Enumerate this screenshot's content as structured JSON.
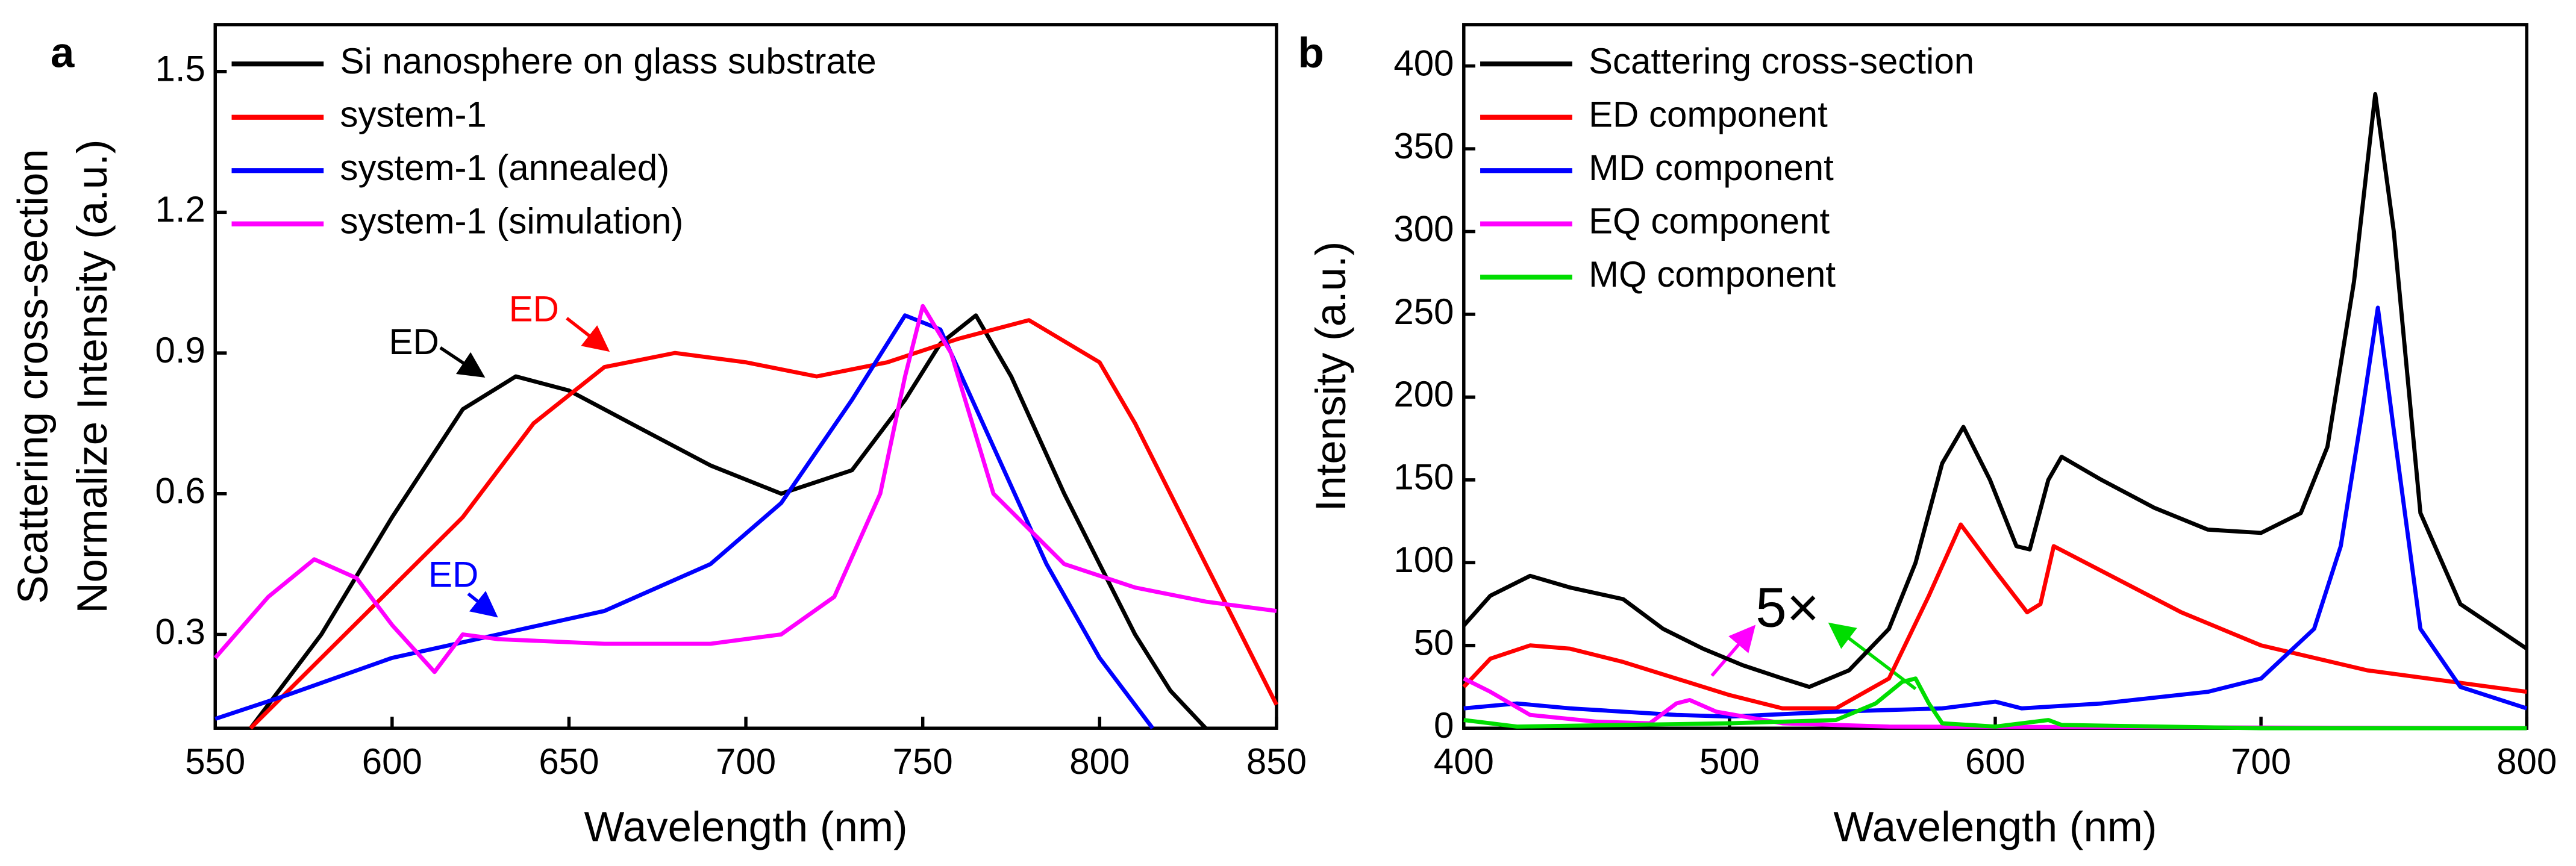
{
  "chart_data": [
    {
      "type": "line",
      "panel": "a",
      "ylabel": [
        "Scattering cross-section",
        "Normalize Intensity (a.u.)"
      ],
      "xlabel": "Wavelength (nm)",
      "xlim": [
        550,
        850
      ],
      "xticks": [
        550,
        600,
        650,
        700,
        750,
        800,
        850
      ],
      "ylim": [
        0.1,
        1.6
      ],
      "yticks": [
        0.3,
        0.6,
        0.9,
        1.2,
        1.5
      ],
      "legend": "upper left",
      "series": [
        {
          "name": "Si nanosphere on glass substrate",
          "color": "#000000",
          "x": [
            560,
            580,
            600,
            620,
            635,
            650,
            670,
            690,
            710,
            730,
            745,
            755,
            765,
            775,
            790,
            800,
            810,
            820,
            830
          ],
          "values": [
            0.1,
            0.3,
            0.55,
            0.78,
            0.85,
            0.82,
            0.74,
            0.66,
            0.6,
            0.65,
            0.8,
            0.92,
            0.98,
            0.85,
            0.6,
            0.45,
            0.3,
            0.18,
            0.1
          ]
        },
        {
          "name": "system-1",
          "color": "#ff0000",
          "x": [
            560,
            580,
            600,
            620,
            640,
            660,
            680,
            700,
            720,
            740,
            760,
            780,
            800,
            810,
            820,
            830,
            840,
            850
          ],
          "values": [
            0.1,
            0.25,
            0.4,
            0.55,
            0.75,
            0.87,
            0.9,
            0.88,
            0.85,
            0.88,
            0.93,
            0.97,
            0.88,
            0.75,
            0.6,
            0.45,
            0.3,
            0.15
          ]
        },
        {
          "name": "system-1 (annealed)",
          "color": "#0000ff",
          "x": [
            550,
            570,
            600,
            630,
            660,
            690,
            710,
            730,
            745,
            755,
            770,
            785,
            800,
            815
          ],
          "values": [
            0.12,
            0.17,
            0.25,
            0.3,
            0.35,
            0.45,
            0.58,
            0.8,
            0.98,
            0.95,
            0.7,
            0.45,
            0.25,
            0.1
          ]
        },
        {
          "name": "system-1 (simulation)",
          "color": "#ff00ff",
          "x": [
            550,
            565,
            578,
            590,
            600,
            612,
            620,
            630,
            660,
            690,
            710,
            725,
            738,
            745,
            750,
            758,
            770,
            790,
            810,
            830,
            850
          ],
          "values": [
            0.25,
            0.38,
            0.46,
            0.42,
            0.32,
            0.22,
            0.3,
            0.29,
            0.28,
            0.28,
            0.3,
            0.38,
            0.6,
            0.85,
            1.0,
            0.9,
            0.6,
            0.45,
            0.4,
            0.37,
            0.35
          ]
        }
      ],
      "annotations": [
        {
          "text": "ED",
          "color": "#000000"
        },
        {
          "text": "ED",
          "color": "#ff0000"
        },
        {
          "text": "ED",
          "color": "#0000ff"
        }
      ]
    },
    {
      "type": "line",
      "panel": "b",
      "ylabel": [
        "Intensity (a.u.)"
      ],
      "xlabel": "Wavelength (nm)",
      "xlim": [
        400,
        800
      ],
      "xticks": [
        400,
        500,
        600,
        700,
        800
      ],
      "ylim": [
        0,
        425
      ],
      "yticks": [
        0,
        50,
        100,
        150,
        200,
        250,
        300,
        350,
        400
      ],
      "legend": "upper left",
      "series": [
        {
          "name": "Scattering cross-section",
          "color": "#000000",
          "x": [
            400,
            410,
            425,
            440,
            460,
            475,
            490,
            505,
            520,
            530,
            545,
            560,
            570,
            580,
            588,
            598,
            608,
            613,
            620,
            625,
            640,
            660,
            680,
            700,
            715,
            725,
            735,
            743,
            750,
            760,
            775,
            800
          ],
          "values": [
            62,
            80,
            92,
            85,
            78,
            60,
            48,
            38,
            30,
            25,
            35,
            60,
            100,
            160,
            182,
            150,
            110,
            108,
            150,
            164,
            150,
            133,
            120,
            118,
            130,
            170,
            270,
            383,
            300,
            130,
            75,
            48
          ]
        },
        {
          "name": "ED component",
          "color": "#ff0000",
          "x": [
            400,
            410,
            425,
            440,
            460,
            480,
            500,
            520,
            540,
            560,
            575,
            587,
            600,
            612,
            617,
            622,
            640,
            670,
            700,
            740,
            800
          ],
          "values": [
            25,
            42,
            50,
            48,
            40,
            30,
            20,
            12,
            12,
            30,
            80,
            123,
            95,
            70,
            75,
            110,
            95,
            70,
            50,
            35,
            22
          ]
        },
        {
          "name": "MD component",
          "color": "#0000ff",
          "x": [
            400,
            420,
            440,
            460,
            480,
            500,
            540,
            580,
            600,
            610,
            640,
            680,
            700,
            720,
            730,
            738,
            744,
            750,
            760,
            775,
            800
          ],
          "values": [
            12,
            15,
            12,
            10,
            8,
            7,
            10,
            12,
            16,
            12,
            15,
            22,
            30,
            60,
            110,
            190,
            254,
            180,
            60,
            25,
            12
          ]
        },
        {
          "name": "EQ component",
          "color": "#ff00ff",
          "x": [
            400,
            410,
            425,
            450,
            470,
            480,
            485,
            495,
            520,
            560,
            800
          ],
          "values": [
            30,
            22,
            8,
            4,
            3,
            15,
            17,
            10,
            3,
            1,
            0
          ]
        },
        {
          "name": "MQ component",
          "color": "#00dd00",
          "x": [
            400,
            420,
            500,
            540,
            555,
            565,
            570,
            575,
            580,
            600,
            620,
            625,
            700,
            800
          ],
          "values": [
            5,
            1,
            3,
            5,
            15,
            28,
            30,
            15,
            3,
            1,
            5,
            2,
            0,
            0
          ]
        }
      ],
      "annotations": [
        {
          "text": "5×",
          "color": "#000000"
        }
      ]
    }
  ]
}
